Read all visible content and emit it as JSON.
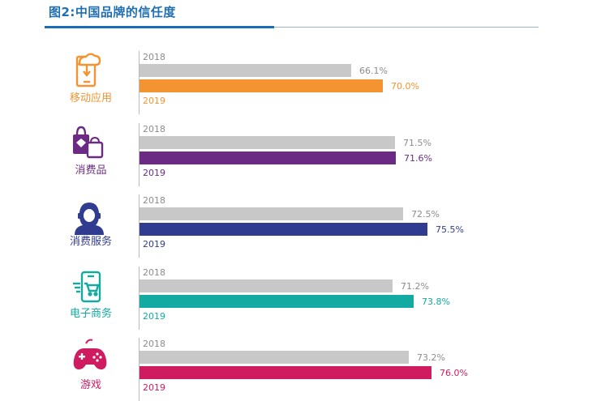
{
  "title": "图2:中国品牌的信任度",
  "chart_data": {
    "type": "bar",
    "orientation": "horizontal",
    "categories": [
      "移动应用",
      "消费品",
      "消费服务",
      "电子商务",
      "游戏"
    ],
    "series": [
      {
        "name": "2018",
        "values": [
          66.1,
          71.5,
          72.5,
          71.2,
          73.2
        ],
        "color": "#c8c8c8"
      },
      {
        "name": "2019",
        "values": [
          70.0,
          71.6,
          75.5,
          73.8,
          76.0
        ]
      }
    ],
    "value_labels": {
      "2018": [
        "66.1%",
        "71.5%",
        "72.5%",
        "71.2%",
        "73.2%"
      ],
      "2019": [
        "70.0%",
        "71.6%",
        "75.5%",
        "73.8%",
        "76.0%"
      ]
    },
    "category_colors": [
      "#f39331",
      "#6b2b85",
      "#303c8f",
      "#12aaa1",
      "#cf1b5f"
    ],
    "category_icons": [
      "phone-download-icon",
      "shopping-bags-icon",
      "customer-service-icon",
      "mobile-cart-icon",
      "gamepad-icon"
    ],
    "grid": false,
    "legend": "none"
  }
}
